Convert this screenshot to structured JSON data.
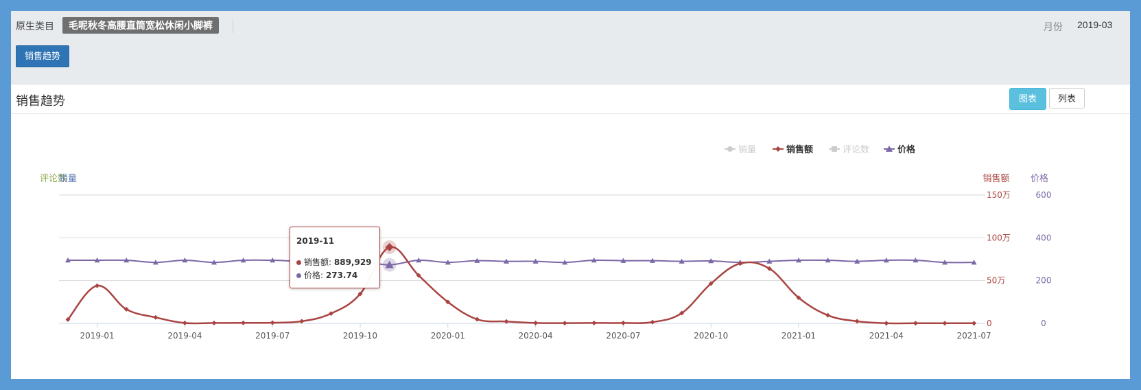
{
  "filter": {
    "category_label": "原生类目",
    "category_value": "毛呢秋冬高腰直筒宽松休闲小脚裤",
    "month_label": "月份",
    "month_value": "2019-03",
    "trend_button": "销售趋势"
  },
  "section": {
    "title": "销售趋势",
    "view_chart": "图表",
    "view_list": "列表"
  },
  "colors": {
    "sales_amount": "#a94442",
    "price": "#7b68a6",
    "inactive": "#cccccc",
    "comments": "#8aa84a",
    "volume": "#5b78b0"
  },
  "chart_data": {
    "type": "line",
    "legend": [
      {
        "name": "销量",
        "active": false,
        "marker": "circle"
      },
      {
        "name": "销售额",
        "active": true,
        "marker": "diamond"
      },
      {
        "name": "评论数",
        "active": false,
        "marker": "square"
      },
      {
        "name": "价格",
        "active": true,
        "marker": "triangle"
      }
    ],
    "legend_position": "top-right",
    "left_axis_labels": {
      "comments": "评论数",
      "volume": "销量"
    },
    "right_axis_titles": {
      "sales_amount": "销售额",
      "price": "价格"
    },
    "x_tick_labels": [
      "2019-01",
      "2019-04",
      "2019-07",
      "2019-10",
      "2020-01",
      "2020-04",
      "2020-07",
      "2020-10",
      "2021-01",
      "2021-04",
      "2021-07"
    ],
    "sales_axis": {
      "min": 0,
      "max": 1500000,
      "ticks": [
        "0",
        "50万",
        "100万",
        "150万"
      ]
    },
    "price_axis": {
      "min": 0,
      "max": 600,
      "ticks": [
        "0",
        "200",
        "400",
        "600"
      ]
    },
    "grid": true,
    "x": [
      "2018-12",
      "2019-01",
      "2019-02",
      "2019-03",
      "2019-04",
      "2019-05",
      "2019-06",
      "2019-07",
      "2019-08",
      "2019-09",
      "2019-10",
      "2019-11",
      "2019-12",
      "2020-01",
      "2020-02",
      "2020-03",
      "2020-04",
      "2020-05",
      "2020-06",
      "2020-07",
      "2020-08",
      "2020-09",
      "2020-10",
      "2020-11",
      "2020-12",
      "2021-01",
      "2021-02",
      "2021-03",
      "2021-04",
      "2021-05",
      "2021-06",
      "2021-07"
    ],
    "series": [
      {
        "name": "销售额",
        "axis": "sales",
        "values": [
          45000,
          440000,
          165000,
          70000,
          5000,
          5000,
          6000,
          8000,
          25000,
          115000,
          345000,
          889929,
          560000,
          250000,
          48000,
          22000,
          5000,
          3000,
          5000,
          5000,
          15000,
          120000,
          465000,
          700000,
          640000,
          300000,
          95000,
          25000,
          2000,
          2000,
          2000,
          2000
        ]
      },
      {
        "name": "价格",
        "axis": "price",
        "values": [
          295,
          295,
          295,
          285,
          295,
          285,
          295,
          295,
          290,
          290,
          290,
          273.74,
          295,
          285,
          293,
          290,
          290,
          285,
          295,
          293,
          293,
          290,
          292,
          285,
          290,
          295,
          295,
          290,
          295,
          295,
          285,
          285
        ]
      }
    ],
    "tooltip": {
      "title": "2019-11",
      "rows": [
        {
          "label": "销售额",
          "value": "889,929"
        },
        {
          "label": "价格",
          "value": "273.74"
        }
      ]
    }
  }
}
